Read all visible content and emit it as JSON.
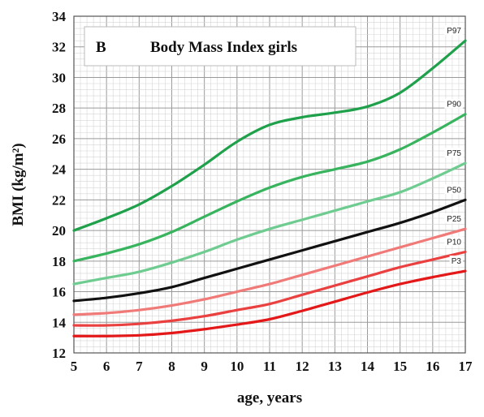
{
  "chart_data": {
    "type": "line",
    "panel_letter": "B",
    "title": "Body Mass Index girls",
    "xlabel": "age, years",
    "ylabel": "BMI (kg/m²)",
    "xlim": [
      5,
      17
    ],
    "ylim": [
      12,
      34
    ],
    "x_ticks": [
      5,
      6,
      7,
      8,
      9,
      10,
      11,
      12,
      13,
      14,
      15,
      16,
      17
    ],
    "y_ticks": [
      12,
      14,
      16,
      18,
      20,
      22,
      24,
      26,
      28,
      30,
      32,
      34
    ],
    "grid": true,
    "x": [
      5,
      6,
      7,
      8,
      9,
      10,
      11,
      12,
      13,
      14,
      15,
      16,
      17
    ],
    "series": [
      {
        "name": "P97",
        "color": "#1fa04a",
        "values": [
          20.0,
          20.8,
          21.7,
          22.9,
          24.3,
          25.8,
          26.9,
          27.4,
          27.7,
          28.1,
          29.0,
          30.6,
          32.4
        ]
      },
      {
        "name": "P90",
        "color": "#38b45e",
        "values": [
          18.0,
          18.5,
          19.1,
          19.9,
          20.9,
          21.9,
          22.8,
          23.5,
          24.0,
          24.5,
          25.3,
          26.4,
          27.6
        ]
      },
      {
        "name": "P75",
        "color": "#6fcc90",
        "values": [
          16.5,
          16.9,
          17.3,
          17.9,
          18.6,
          19.4,
          20.1,
          20.7,
          21.3,
          21.9,
          22.5,
          23.4,
          24.4
        ]
      },
      {
        "name": "P50",
        "color": "#111111",
        "values": [
          15.4,
          15.6,
          15.9,
          16.3,
          16.9,
          17.5,
          18.1,
          18.7,
          19.3,
          19.9,
          20.5,
          21.2,
          22.0
        ]
      },
      {
        "name": "P25",
        "color": "#f07a78",
        "values": [
          14.5,
          14.6,
          14.8,
          15.1,
          15.5,
          16.0,
          16.5,
          17.1,
          17.7,
          18.3,
          18.9,
          19.5,
          20.1
        ]
      },
      {
        "name": "P10",
        "color": "#ea4040",
        "values": [
          13.8,
          13.8,
          13.9,
          14.1,
          14.4,
          14.8,
          15.2,
          15.8,
          16.4,
          17.0,
          17.6,
          18.1,
          18.6
        ]
      },
      {
        "name": "P3",
        "color": "#e41818",
        "values": [
          13.1,
          13.1,
          13.15,
          13.3,
          13.55,
          13.85,
          14.2,
          14.75,
          15.35,
          15.95,
          16.5,
          16.95,
          17.35
        ]
      }
    ]
  }
}
